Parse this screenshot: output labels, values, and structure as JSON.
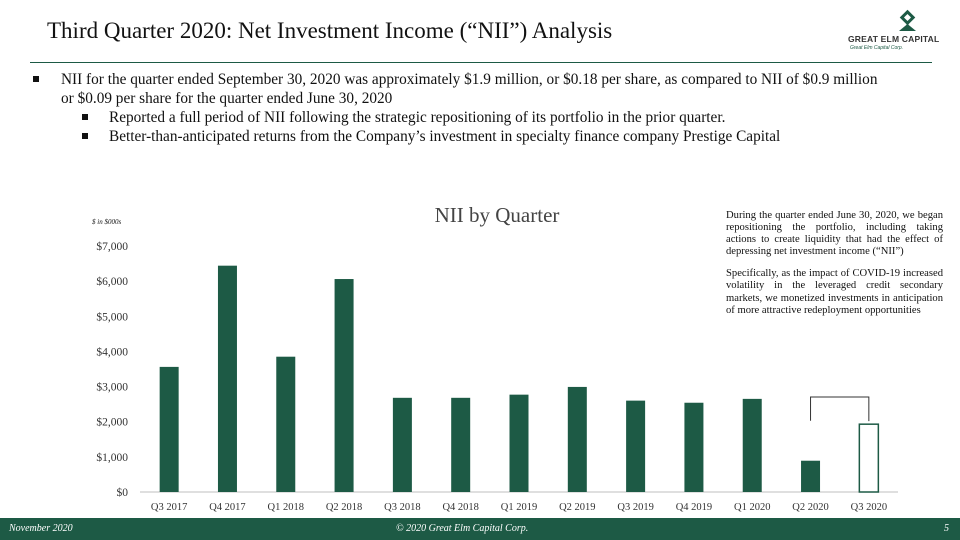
{
  "header": {
    "title": "Third Quarter 2020: Net Investment Income (“NII”) Analysis",
    "logo_text": "GREAT ELM CAPITAL",
    "logo_sub": "Great Elm Capital Corp."
  },
  "bullets": [
    {
      "text": "NII for the quarter ended September 30, 2020 was approximately $1.9 million, or $0.18 per share, as compared to NII of $0.9 million or $0.09 per share for the quarter ended June 30, 2020",
      "sub": [
        "Reported a full period of NII following the strategic repositioning of its portfolio in the prior quarter.",
        "Better-than-anticipated returns from the Company’s investment in specialty finance company Prestige Capital"
      ]
    }
  ],
  "chart_data": {
    "type": "bar",
    "title": "NII by Quarter",
    "units_label": "$ in $000s",
    "categories": [
      "Q3 2017",
      "Q4 2017",
      "Q1 2018",
      "Q2 2018",
      "Q3 2018",
      "Q4 2018",
      "Q1 2019",
      "Q2 2019",
      "Q3 2019",
      "Q4 2019",
      "Q1 2020",
      "Q2 2020",
      "Q3 2020"
    ],
    "values": [
      3560,
      6440,
      3850,
      6060,
      2680,
      2680,
      2770,
      2990,
      2600,
      2540,
      2650,
      890,
      1930
    ],
    "ylim": [
      0,
      7000
    ],
    "yticks": [
      0,
      1000,
      2000,
      3000,
      4000,
      5000,
      6000,
      7000
    ],
    "ytick_labels": [
      "$0",
      "$1,000",
      "$2,000",
      "$3,000",
      "$4,000",
      "$5,000",
      "$6,000",
      "$7,000"
    ],
    "bar_color": "#1d5a45",
    "highlight_index": 12,
    "bracket_from": 11,
    "bracket_to": 12
  },
  "note": {
    "p1": "During the quarter ended June 30, 2020, we began repositioning the portfolio, including taking actions to create liquidity that had the effect of depressing net investment income (“NII”)",
    "p2": "Specifically, as the impact of COVID-19 increased volatility in the leveraged credit secondary markets, we monetized investments in anticipation of more attractive redeployment opportunities"
  },
  "footer": {
    "date": "November 2020",
    "copyright": "© 2020 Great Elm Capital Corp.",
    "page": "5"
  },
  "colors": {
    "brand": "#1d5a45"
  }
}
